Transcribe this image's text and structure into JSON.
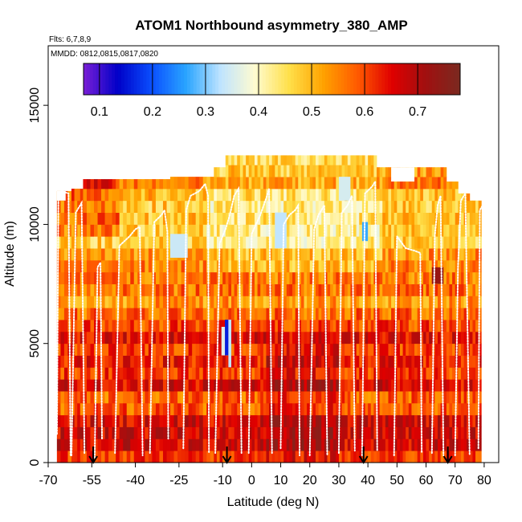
{
  "chart_data": {
    "type": "heatmap",
    "title": "ATOM1 Northbound asymmetry_380_AMP",
    "subtitle_lines": [
      "Flts: 6,7,8,9",
      "MMDD: 0812,0815,0817,0820"
    ],
    "xlabel": "Latitude (deg N)",
    "ylabel": "Altitude (m)",
    "xlim": [
      -70,
      85
    ],
    "ylim": [
      0,
      17500
    ],
    "x_ticks": [
      -70,
      -55,
      -40,
      -25,
      -10,
      0,
      10,
      20,
      30,
      40,
      50,
      60,
      70,
      80
    ],
    "x_tick_labels": [
      "-70",
      "-55",
      "-40",
      "-25",
      "-10",
      "0",
      "10",
      "20",
      "30",
      "40",
      "50",
      "60",
      "70",
      "80"
    ],
    "y_ticks": [
      0,
      5000,
      10000,
      15000
    ],
    "y_tick_labels": [
      "0",
      "5000",
      "10000",
      "15000"
    ],
    "colorbar": {
      "range": [
        0.07,
        0.78
      ],
      "ticks": [
        0.1,
        0.2,
        0.3,
        0.4,
        0.5,
        0.6,
        0.7
      ],
      "tick_labels": [
        "0.1",
        "0.2",
        "0.3",
        "0.4",
        "0.5",
        "0.6",
        "0.7"
      ],
      "colors": [
        "#7a1fd6",
        "#0000c8",
        "#0a50ff",
        "#2aa5ff",
        "#bfe4ff",
        "#fffbd0",
        "#ffe04a",
        "#ffa200",
        "#ff5a00",
        "#e00000",
        "#a01010",
        "#7a2a20"
      ]
    },
    "column_edges": [
      -67,
      -62,
      -58,
      -53,
      -48,
      -43,
      -38,
      -33,
      -28,
      -23,
      -18,
      -13,
      -9,
      -5,
      -1,
      3,
      7,
      11,
      15,
      19,
      23,
      27,
      31,
      35,
      39,
      43,
      47,
      51,
      55,
      59,
      63,
      67,
      71,
      75,
      79
    ],
    "column_tops": [
      11400,
      11500,
      11900,
      11900,
      11900,
      11900,
      11900,
      11900,
      12000,
      12000,
      12000,
      12400,
      12900,
      12900,
      12900,
      12900,
      12900,
      12900,
      12900,
      12900,
      12900,
      12900,
      12900,
      12900,
      12900,
      12400,
      12400,
      12400,
      12400,
      12400,
      12400,
      11800,
      11300,
      11000
    ],
    "row_height": 500,
    "anomalies": [
      {
        "lat": [
          -9.2,
          -8.0
        ],
        "alt": [
          4500,
          6000
        ],
        "value": 0.16
      },
      {
        "lat": [
          -8.0,
          -7.0
        ],
        "alt": [
          4000,
          6000
        ],
        "value": 0.33
      },
      {
        "lat": [
          -10.4,
          -9.2
        ],
        "alt": [
          4500,
          5700
        ],
        "value": 0.36
      },
      {
        "lat": [
          38.0,
          40.0
        ],
        "alt": [
          9300,
          10100
        ],
        "value": 0.27
      },
      {
        "lat": [
          30.0,
          34.0
        ],
        "alt": [
          11000,
          12000
        ],
        "value": 0.35
      },
      {
        "lat": [
          8.0,
          12.0
        ],
        "alt": [
          9000,
          10500
        ],
        "value": 0.33
      },
      {
        "lat": [
          62.0,
          66.0
        ],
        "alt": [
          7500,
          8200
        ],
        "value": 0.73
      },
      {
        "lat": [
          -28.0,
          -22.0
        ],
        "alt": [
          8600,
          9600
        ],
        "value": 0.34
      }
    ],
    "flight_tracks": [
      [
        [
          -67,
          1200
        ],
        [
          -66.5,
          11000
        ],
        [
          -65.5,
          11400
        ],
        [
          -63,
          11300
        ],
        [
          -62.3,
          300
        ]
      ],
      [
        [
          -62,
          300
        ],
        [
          -60.5,
          10500
        ],
        [
          -58.5,
          10900
        ],
        [
          -57.5,
          400
        ]
      ],
      [
        [
          -54,
          200
        ],
        [
          -53,
          8200
        ],
        [
          -52,
          8400
        ],
        [
          -51.5,
          1000
        ]
      ],
      [
        [
          -47,
          400
        ],
        [
          -45.5,
          9100
        ],
        [
          -42,
          9500
        ],
        [
          -40,
          9800
        ],
        [
          -38.5,
          9900
        ],
        [
          -37.5,
          300
        ]
      ],
      [
        [
          -35,
          400
        ],
        [
          -33.5,
          10100
        ],
        [
          -31,
          10400
        ],
        [
          -30,
          10600
        ],
        [
          -29,
          9700
        ],
        [
          -28.7,
          1000
        ]
      ],
      [
        [
          -23.5,
          600
        ],
        [
          -22.5,
          10600
        ],
        [
          -21,
          11200
        ],
        [
          -18,
          11400
        ],
        [
          -16,
          11700
        ],
        [
          -15,
          11200
        ],
        [
          -14.7,
          400
        ]
      ],
      [
        [
          -12.5,
          400
        ],
        [
          -11,
          9200
        ],
        [
          -9,
          9800
        ],
        [
          -7.5,
          10400
        ],
        [
          -6,
          11200
        ],
        [
          -4.5,
          11500
        ],
        [
          -3.5,
          400
        ]
      ],
      [
        [
          -1,
          400
        ],
        [
          0,
          9600
        ],
        [
          3,
          10400
        ],
        [
          5,
          11100
        ],
        [
          6,
          11500
        ],
        [
          7,
          400
        ]
      ],
      [
        [
          10,
          600
        ],
        [
          11,
          10000
        ],
        [
          13,
          10400
        ],
        [
          15,
          10600
        ],
        [
          16,
          10800
        ],
        [
          16.5,
          300
        ]
      ],
      [
        [
          20,
          300
        ],
        [
          21.5,
          9800
        ],
        [
          23,
          10400
        ],
        [
          25,
          10800
        ],
        [
          26,
          300
        ]
      ],
      [
        [
          30,
          400
        ],
        [
          31,
          10500
        ],
        [
          33,
          10800
        ],
        [
          34.5,
          11200
        ],
        [
          35.5,
          500
        ]
      ],
      [
        [
          38,
          300
        ],
        [
          39,
          11300
        ],
        [
          41.5,
          11600
        ],
        [
          42.5,
          11800
        ],
        [
          43.2,
          500
        ]
      ],
      [
        [
          49,
          300
        ],
        [
          50,
          9500
        ],
        [
          53,
          9000
        ],
        [
          56,
          8900
        ],
        [
          58,
          8800
        ],
        [
          58.5,
          400
        ]
      ],
      [
        [
          62,
          400
        ],
        [
          63,
          9500
        ],
        [
          64,
          10800
        ],
        [
          65,
          11200
        ],
        [
          66,
          300
        ]
      ],
      [
        [
          70,
          300
        ],
        [
          71,
          8200
        ],
        [
          72,
          11000
        ],
        [
          73.5,
          11300
        ],
        [
          75,
          300
        ]
      ],
      [
        [
          78,
          600
        ],
        [
          78.5,
          10600
        ],
        [
          79.5,
          10800
        ],
        [
          80,
          300
        ]
      ]
    ],
    "arrows_lat": [
      -54.5,
      -8.5,
      38.5,
      67.5
    ],
    "missing_boxes": [
      {
        "lat": [
          48,
          56
        ],
        "alt": [
          11800,
          12400
        ]
      },
      {
        "lat": [
          -67,
          -64
        ],
        "alt": [
          11000,
          11400
        ]
      }
    ]
  }
}
